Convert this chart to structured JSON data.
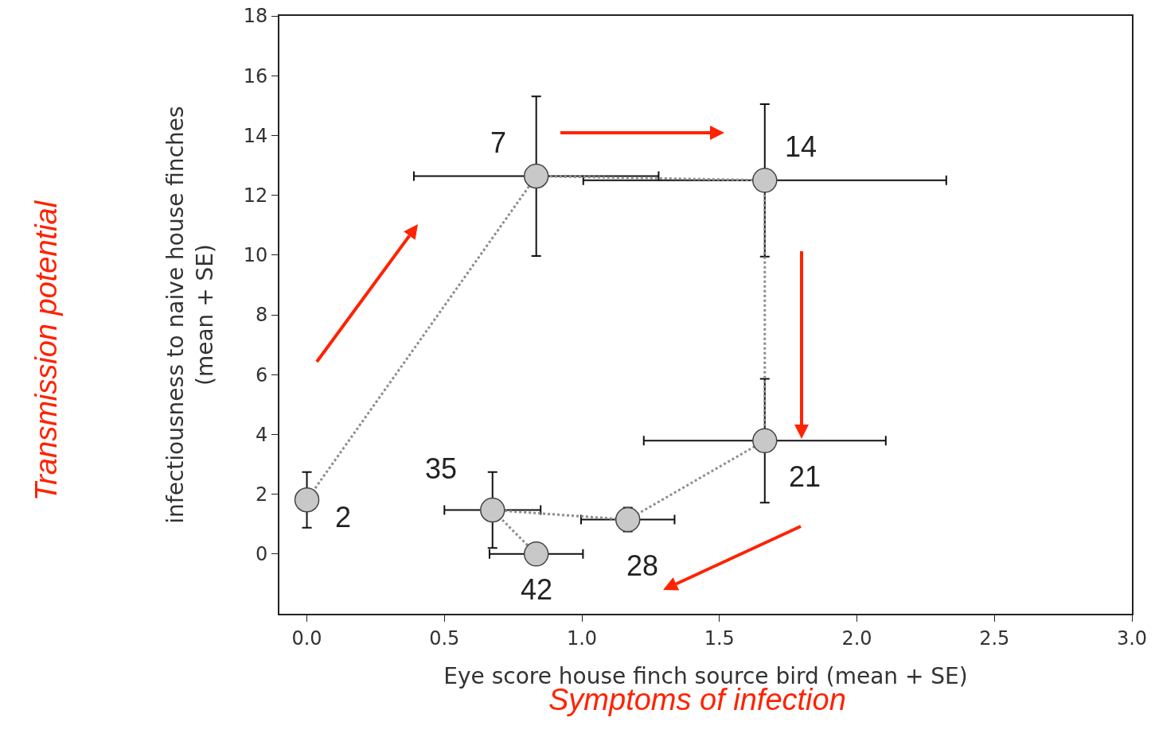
{
  "chart_data": {
    "type": "line",
    "xlabel": "Eye score house finch source bird (mean + SE)",
    "ylabel": "infectiousness to naive house finches\n(mean + SE)",
    "x": [
      0,
      0.834,
      1.665,
      1.665,
      1.167,
      0.675,
      0.834
    ],
    "series": [
      {
        "color": "#c8c8c8",
        "values": [
          1.81,
          12.64,
          12.5,
          3.79,
          1.15,
          1.47,
          0
        ],
        "errors": [
          0.93,
          2.67,
          2.55,
          2.07,
          0.4,
          1.27,
          null
        ],
        "xerrors": [
          null,
          0.445,
          0.66,
          0.44,
          0.17,
          0.175,
          0.17
        ]
      }
    ],
    "marker": "circle",
    "line_style": "dotted",
    "grid": false,
    "xlim": [
      -0.1,
      3.0
    ],
    "xticks": [
      {
        "value": 0,
        "label": "0.0"
      },
      {
        "value": 0.5,
        "label": "0.5"
      },
      {
        "value": 1,
        "label": "1.0"
      },
      {
        "value": 1.5,
        "label": "1.5"
      },
      {
        "value": 2,
        "label": "2.0"
      },
      {
        "value": 2.5,
        "label": "2.5"
      },
      {
        "value": 3,
        "label": "3.0"
      }
    ],
    "ylim": [
      -2,
      18
    ],
    "yticks": [
      0,
      2,
      4,
      6,
      8,
      10,
      12,
      14,
      16,
      18
    ],
    "annotations": [
      {
        "text": "2",
        "x": 0,
        "y": 1.81
      },
      {
        "text": "7",
        "x": 0.834,
        "y": 12.64
      },
      {
        "text": "14",
        "x": 1.665,
        "y": 12.5
      },
      {
        "text": "21",
        "x": 1.665,
        "y": 3.79
      },
      {
        "text": "28",
        "x": 1.167,
        "y": 1.15
      },
      {
        "text": "35",
        "x": 0.675,
        "y": 1.47
      },
      {
        "text": "42",
        "x": 0.834,
        "y": 0
      },
      "Transmission potential",
      "Symptoms of infection"
    ]
  }
}
